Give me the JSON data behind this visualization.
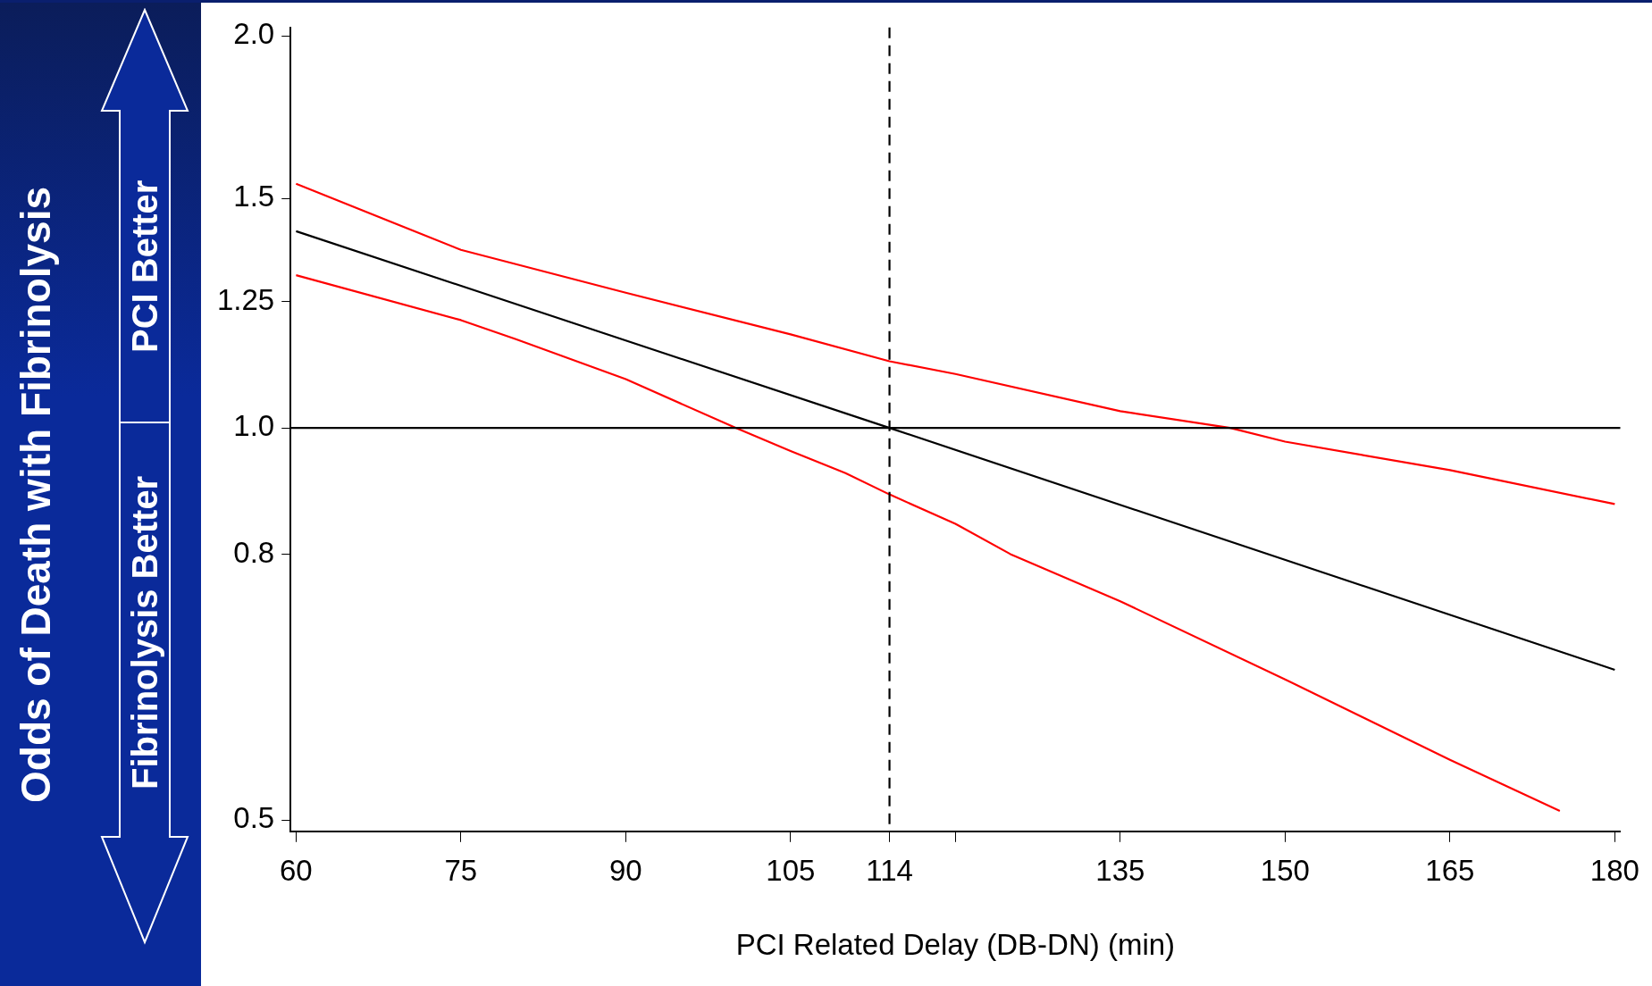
{
  "chart_data": {
    "type": "line",
    "ylabel": "Odds of Death with Fibrinolysis",
    "xlabel": "PCI Related Delay (DB-DN) (min)",
    "annotations": [
      "PCI Better",
      "Fibrinolysis Better"
    ],
    "log": "y",
    "grid": false,
    "legend": false,
    "marker": "none",
    "xlim": [
      59.5,
      180.5
    ],
    "xticks": [
      60,
      75,
      90,
      105,
      114,
      {
        "value": 120,
        "label": null
      },
      135,
      150,
      165,
      180
    ],
    "ylim": [
      0.49,
      2.03
    ],
    "yticks": [
      0.5,
      0.8,
      {
        "value": 1,
        "label": "1.0"
      },
      1.25,
      1.5,
      {
        "value": 2,
        "label": "2.0"
      }
    ],
    "ref_lines": [
      {
        "axis": "y",
        "value": 1,
        "color": "#000000",
        "line_style": "solid"
      },
      {
        "axis": "x",
        "value": 114,
        "color": "#000000",
        "line_style": "dashed"
      }
    ],
    "series": [
      {
        "color": "#000000",
        "x": [
          60,
          114,
          180
        ],
        "values": [
          1.416,
          1.0,
          0.652
        ]
      },
      {
        "color": "#ff0000",
        "x": [
          60,
          75,
          90,
          105,
          114,
          120,
          135,
          145,
          150,
          165,
          180
        ],
        "values": [
          1.54,
          1.37,
          1.27,
          1.18,
          1.125,
          1.1,
          1.03,
          1.0,
          0.976,
          0.928,
          0.874
        ]
      },
      {
        "color": "#ff0000",
        "x": [
          60,
          75,
          80,
          90,
          100,
          105,
          110,
          114,
          120,
          125,
          135,
          150,
          165,
          175
        ],
        "values": [
          1.31,
          1.21,
          1.17,
          1.09,
          1.0,
          0.96,
          0.923,
          0.889,
          0.844,
          0.8,
          0.736,
          0.641,
          0.556,
          0.508
        ]
      }
    ]
  }
}
